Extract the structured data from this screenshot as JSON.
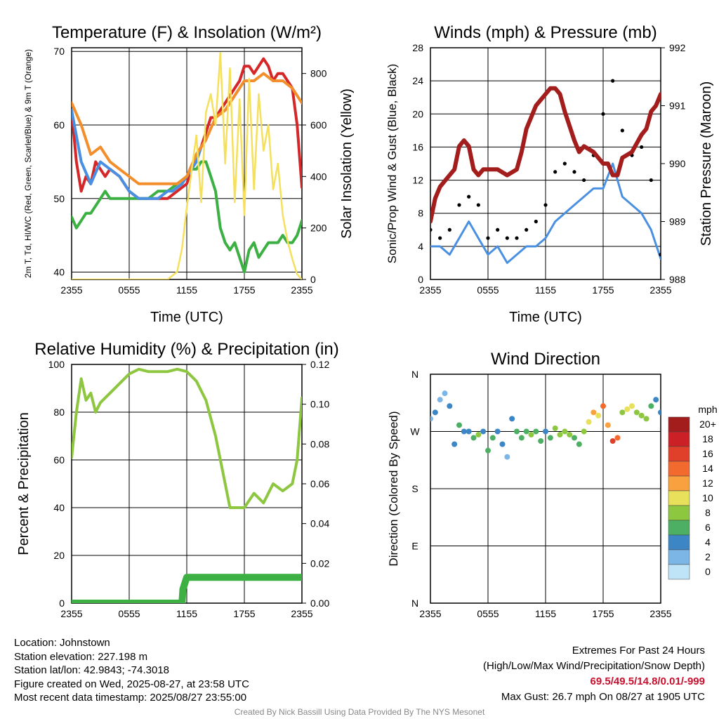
{
  "figure": {
    "credit": "Created By Nick Bassill Using Data Provided By The NYS Mesonet"
  },
  "info": {
    "location": "Location: Johnstown",
    "elevation": "Station elevation: 227.198 m",
    "latlon": "Station lat/lon: 42.9843; -74.3018",
    "created": "Figure created on Wed, 2025-08-27, at 23:58 UTC",
    "recent": "Most recent data timestamp: 2025/08/27 23:55:00"
  },
  "extremes": {
    "title": "Extremes For Past 24 Hours",
    "subtitle": "(High/Low/Max Wind/Precipitation/Snow Depth)",
    "values": "69.5/49.5/14.8/0.01/-999",
    "max_gust": "Max Gust: 26.7 mph On 08/27 at 1905 UTC"
  },
  "chart_data": [
    {
      "id": "temperature",
      "type": "line",
      "title": "Temperature (F) & Insolation (W/m²)",
      "xlabel": "Time (UTC)",
      "ylabel_left": "2m T, Td, HI/WC (Red, Green, Scarlet/Blue) & 9m T (Orange)",
      "ylabel_right": "Solar Insolation (Yellow)",
      "xticks": [
        "2355",
        "0555",
        "1155",
        "1755",
        "2355"
      ],
      "x_hours": [
        0,
        24
      ],
      "ylim_left": [
        39,
        70.5
      ],
      "yticks_left": [
        40,
        50,
        60,
        70
      ],
      "ylim_right": [
        0,
        900
      ],
      "yticks_right": [
        0,
        200,
        400,
        600,
        800
      ],
      "series": [
        {
          "name": "2m T",
          "color": "#d62728",
          "axis": "left",
          "x": [
            0,
            0.5,
            1,
            1.5,
            2,
            2.5,
            3,
            3.5,
            4,
            5,
            6,
            7,
            8,
            9,
            10,
            11,
            12,
            12.5,
            13,
            13.5,
            14,
            14.5,
            15,
            15.5,
            16,
            16.5,
            17,
            17.5,
            18,
            18.5,
            19,
            19.5,
            20,
            20.5,
            21,
            21.5,
            22,
            22.5,
            23,
            23.5,
            24
          ],
          "values": [
            62,
            55,
            51,
            53,
            52,
            55,
            54,
            53,
            54,
            53,
            51,
            50,
            50,
            50,
            50,
            51,
            52,
            54,
            56,
            57,
            59,
            61,
            61,
            62,
            63,
            64,
            65,
            66,
            68,
            68,
            67,
            68,
            69,
            68,
            66,
            67,
            67,
            66,
            65,
            60,
            51.5
          ]
        },
        {
          "name": "2m Td",
          "color": "#3cb043",
          "axis": "left",
          "x": [
            0,
            0.5,
            1,
            1.5,
            2,
            2.5,
            3,
            3.5,
            4,
            5,
            6,
            7,
            8,
            9,
            10,
            11,
            12,
            12.5,
            13,
            13.5,
            14,
            14.5,
            15,
            15.5,
            16,
            16.5,
            17,
            17.5,
            18,
            18.5,
            19,
            19.5,
            20,
            20.5,
            21,
            21.5,
            22,
            22.5,
            23,
            23.5,
            24
          ],
          "values": [
            47.5,
            46,
            47,
            48,
            48,
            49,
            50,
            51,
            50,
            50,
            50,
            50,
            50,
            51,
            51,
            52,
            53,
            54,
            54,
            55,
            55,
            53,
            51,
            46,
            44,
            43,
            44,
            42,
            40,
            43,
            44,
            42,
            43,
            44,
            44,
            44,
            45,
            44,
            44,
            45,
            47
          ]
        },
        {
          "name": "HI/WC",
          "color": "#4a90e2",
          "axis": "left",
          "x": [
            0,
            1,
            2,
            3,
            4,
            5,
            6,
            7,
            8,
            9,
            10,
            10.5,
            11,
            11.5,
            12,
            12.5,
            13,
            13.5,
            14
          ],
          "values": [
            62,
            55,
            52,
            55,
            54,
            53,
            51,
            50,
            50,
            50,
            51,
            51,
            51.5,
            52,
            53,
            54,
            55,
            57,
            58
          ]
        },
        {
          "name": "9m T",
          "color": "#f28e2b",
          "axis": "left",
          "x": [
            0,
            1,
            2,
            3,
            4,
            5,
            6,
            7,
            8,
            9,
            10,
            11,
            12,
            13,
            14,
            15,
            16,
            17,
            18,
            19,
            20,
            21,
            22,
            23,
            24
          ],
          "values": [
            63,
            60,
            56,
            57,
            55,
            54,
            53,
            52,
            52,
            52,
            52,
            52,
            53,
            56,
            58,
            61,
            62,
            64,
            66,
            66,
            67,
            66,
            66,
            65,
            63
          ]
        },
        {
          "name": "Solar Insolation",
          "color": "#f5e05e",
          "axis": "right",
          "x": [
            0,
            10,
            11,
            11.5,
            12,
            12.5,
            13,
            13.5,
            14,
            14.5,
            15,
            15.5,
            16,
            16.5,
            17,
            17.5,
            18,
            18.5,
            19,
            19.5,
            20,
            20.5,
            21,
            21.5,
            22,
            22.5,
            23,
            23.5,
            24
          ],
          "values": [
            0,
            0,
            30,
            120,
            280,
            420,
            560,
            300,
            650,
            720,
            600,
            880,
            450,
            820,
            300,
            700,
            250,
            780,
            350,
            720,
            500,
            600,
            350,
            450,
            250,
            150,
            80,
            20,
            0
          ]
        }
      ]
    },
    {
      "id": "winds",
      "type": "scatter",
      "title": "Winds (mph) & Pressure (mb)",
      "xlabel": "Time (UTC)",
      "ylabel_left": "Sonic/Prop Wind & Gust (Blue, Black)",
      "ylabel_right": "Station Pressure (Maroon)",
      "xticks": [
        "2355",
        "0555",
        "1155",
        "1755",
        "2355"
      ],
      "x_hours": [
        0,
        24
      ],
      "ylim_left": [
        0,
        28
      ],
      "yticks_left": [
        0,
        4,
        8,
        12,
        16,
        20,
        24,
        28
      ],
      "ylim_right": [
        988,
        992
      ],
      "yticks_right": [
        988,
        989,
        990,
        991,
        992
      ],
      "series": [
        {
          "name": "Wind",
          "color": "#4a90e2",
          "axis": "left",
          "x": [
            0,
            1,
            2,
            3,
            4,
            5,
            6,
            7,
            8,
            9,
            10,
            11,
            12,
            13,
            14,
            15,
            16,
            17,
            18,
            19,
            20,
            21,
            22,
            23,
            24
          ],
          "values": [
            4,
            4,
            3,
            5,
            7,
            5,
            3,
            4,
            2,
            3,
            4,
            4,
            5,
            7,
            8,
            9,
            10,
            11,
            11,
            14,
            10,
            9,
            8,
            6,
            2.5
          ]
        },
        {
          "name": "Gust",
          "color": "#000000",
          "axis": "left",
          "x": [
            0,
            1,
            2,
            3,
            4,
            5,
            6,
            7,
            8,
            9,
            10,
            11,
            12,
            13,
            14,
            15,
            16,
            17,
            18,
            19,
            20,
            21,
            22,
            23,
            24
          ],
          "values": [
            6,
            5,
            6,
            9,
            10,
            9,
            5,
            6,
            5,
            5,
            6,
            7,
            9,
            13,
            14,
            13,
            12,
            15,
            20,
            24,
            18,
            15,
            16,
            12,
            3
          ]
        },
        {
          "name": "Station Pressure",
          "color": "#a31d1d",
          "axis": "right",
          "x": [
            0,
            0.5,
            1,
            1.5,
            2,
            2.5,
            3,
            3.5,
            4,
            4.5,
            5,
            5.5,
            6,
            7,
            8,
            9,
            9.5,
            10,
            11,
            12,
            12.5,
            13,
            13.5,
            14,
            15,
            15.5,
            16,
            17,
            18,
            18.5,
            19,
            19.5,
            20,
            21,
            22,
            22.5,
            23,
            23.5,
            24
          ],
          "values": [
            989,
            989.4,
            989.6,
            989.7,
            989.8,
            989.9,
            990.3,
            990.4,
            990.3,
            989.9,
            989.8,
            989.9,
            989.9,
            989.9,
            989.8,
            989.9,
            990.2,
            990.6,
            991,
            991.2,
            991.3,
            991.3,
            991.2,
            990.9,
            990.4,
            990.2,
            990.3,
            990.2,
            990,
            990,
            989.8,
            989.8,
            990.1,
            990.2,
            990.5,
            990.6,
            990.9,
            991.0,
            991.2
          ]
        }
      ]
    },
    {
      "id": "humidity",
      "type": "line",
      "title": "Relative Humidity (%) & Precipitation (in)",
      "ylabel_left": "Percent & Precipitation",
      "xticks": [
        "2355",
        "0555",
        "1155",
        "1755",
        "2355"
      ],
      "x_hours": [
        0,
        24
      ],
      "ylim_left": [
        0,
        100
      ],
      "yticks_left": [
        0,
        20,
        40,
        60,
        80,
        100
      ],
      "ylim_right": [
        0,
        0.12
      ],
      "yticks_right": [
        "0.00",
        "0.02",
        "0.04",
        "0.06",
        "0.08",
        "0.10",
        "0.12"
      ],
      "series": [
        {
          "name": "Relative Humidity",
          "color": "#8dc63f",
          "axis": "left",
          "x": [
            0,
            0.5,
            1,
            1.5,
            2,
            2.5,
            3,
            3.5,
            4,
            5,
            6,
            7,
            8,
            9,
            10,
            11,
            12,
            13,
            14,
            15,
            16,
            16.5,
            17,
            18,
            19,
            20,
            21,
            22,
            23,
            23.5,
            24
          ],
          "values": [
            61,
            80,
            94,
            85,
            88,
            80,
            84,
            86,
            88,
            92,
            96,
            98,
            97,
            97,
            97,
            98,
            97,
            93,
            85,
            70,
            50,
            40,
            40,
            40,
            46,
            42,
            50,
            47,
            50,
            60,
            86
          ]
        },
        {
          "name": "Precipitation",
          "color": "#3cb043",
          "axis": "right",
          "x": [
            0,
            11.5,
            11.6,
            12,
            24
          ],
          "values": [
            0,
            0,
            0.007,
            0.013,
            0.013
          ]
        }
      ]
    },
    {
      "id": "winddir",
      "type": "scatter",
      "title": "Wind Direction",
      "ylabel_left": "Direction (Colored By Speed)",
      "xticks": [
        "2355",
        "0555",
        "1155",
        "1755",
        "2355"
      ],
      "x_hours": [
        0,
        24
      ],
      "ylim_left": [
        0,
        360
      ],
      "yticks_left": [
        "N",
        "E",
        "S",
        "W",
        "N"
      ],
      "colorbar": {
        "unit": "mph",
        "labels": [
          "20+",
          "18",
          "16",
          "14",
          "12",
          "10",
          "8",
          "6",
          "4",
          "2",
          "0"
        ],
        "colors": [
          "#a31d1d",
          "#cc2027",
          "#e0402a",
          "#f26a2e",
          "#f9a03f",
          "#e8e05a",
          "#8dc63f",
          "#4caf63",
          "#3d86c6",
          "#7bb6e6",
          "#bfe3f7"
        ]
      },
      "series": [
        {
          "name": "Wind Direction",
          "x": [
            0,
            0.5,
            1,
            1.5,
            2,
            2.5,
            3,
            3.5,
            4,
            4.5,
            5,
            5.5,
            6,
            6.5,
            7,
            7.5,
            8,
            8.5,
            9,
            9.5,
            10,
            10.5,
            11,
            11.5,
            12,
            12.5,
            13,
            13.5,
            14,
            14.5,
            15,
            15.5,
            16,
            16.5,
            17,
            17.5,
            18,
            18.5,
            19,
            19.5,
            20,
            20.5,
            21,
            21.5,
            22,
            22.5,
            23,
            23.5,
            24
          ],
          "values": [
            290,
            300,
            320,
            330,
            310,
            250,
            280,
            270,
            270,
            260,
            265,
            270,
            240,
            260,
            270,
            250,
            230,
            290,
            270,
            260,
            270,
            265,
            270,
            255,
            270,
            260,
            275,
            265,
            270,
            265,
            260,
            250,
            270,
            285,
            300,
            295,
            310,
            280,
            255,
            260,
            300,
            305,
            310,
            300,
            295,
            290,
            310,
            320,
            300
          ],
          "speeds": [
            2,
            3,
            2,
            1,
            3,
            4,
            5,
            4,
            3,
            6,
            7,
            4,
            6,
            5,
            3,
            4,
            2,
            4,
            5,
            5,
            6,
            7,
            5,
            6,
            4,
            5,
            7,
            8,
            7,
            7,
            6,
            6,
            8,
            9,
            11,
            10,
            13,
            12,
            15,
            13,
            8,
            9,
            9,
            7,
            8,
            8,
            6,
            4,
            3
          ]
        }
      ]
    }
  ]
}
